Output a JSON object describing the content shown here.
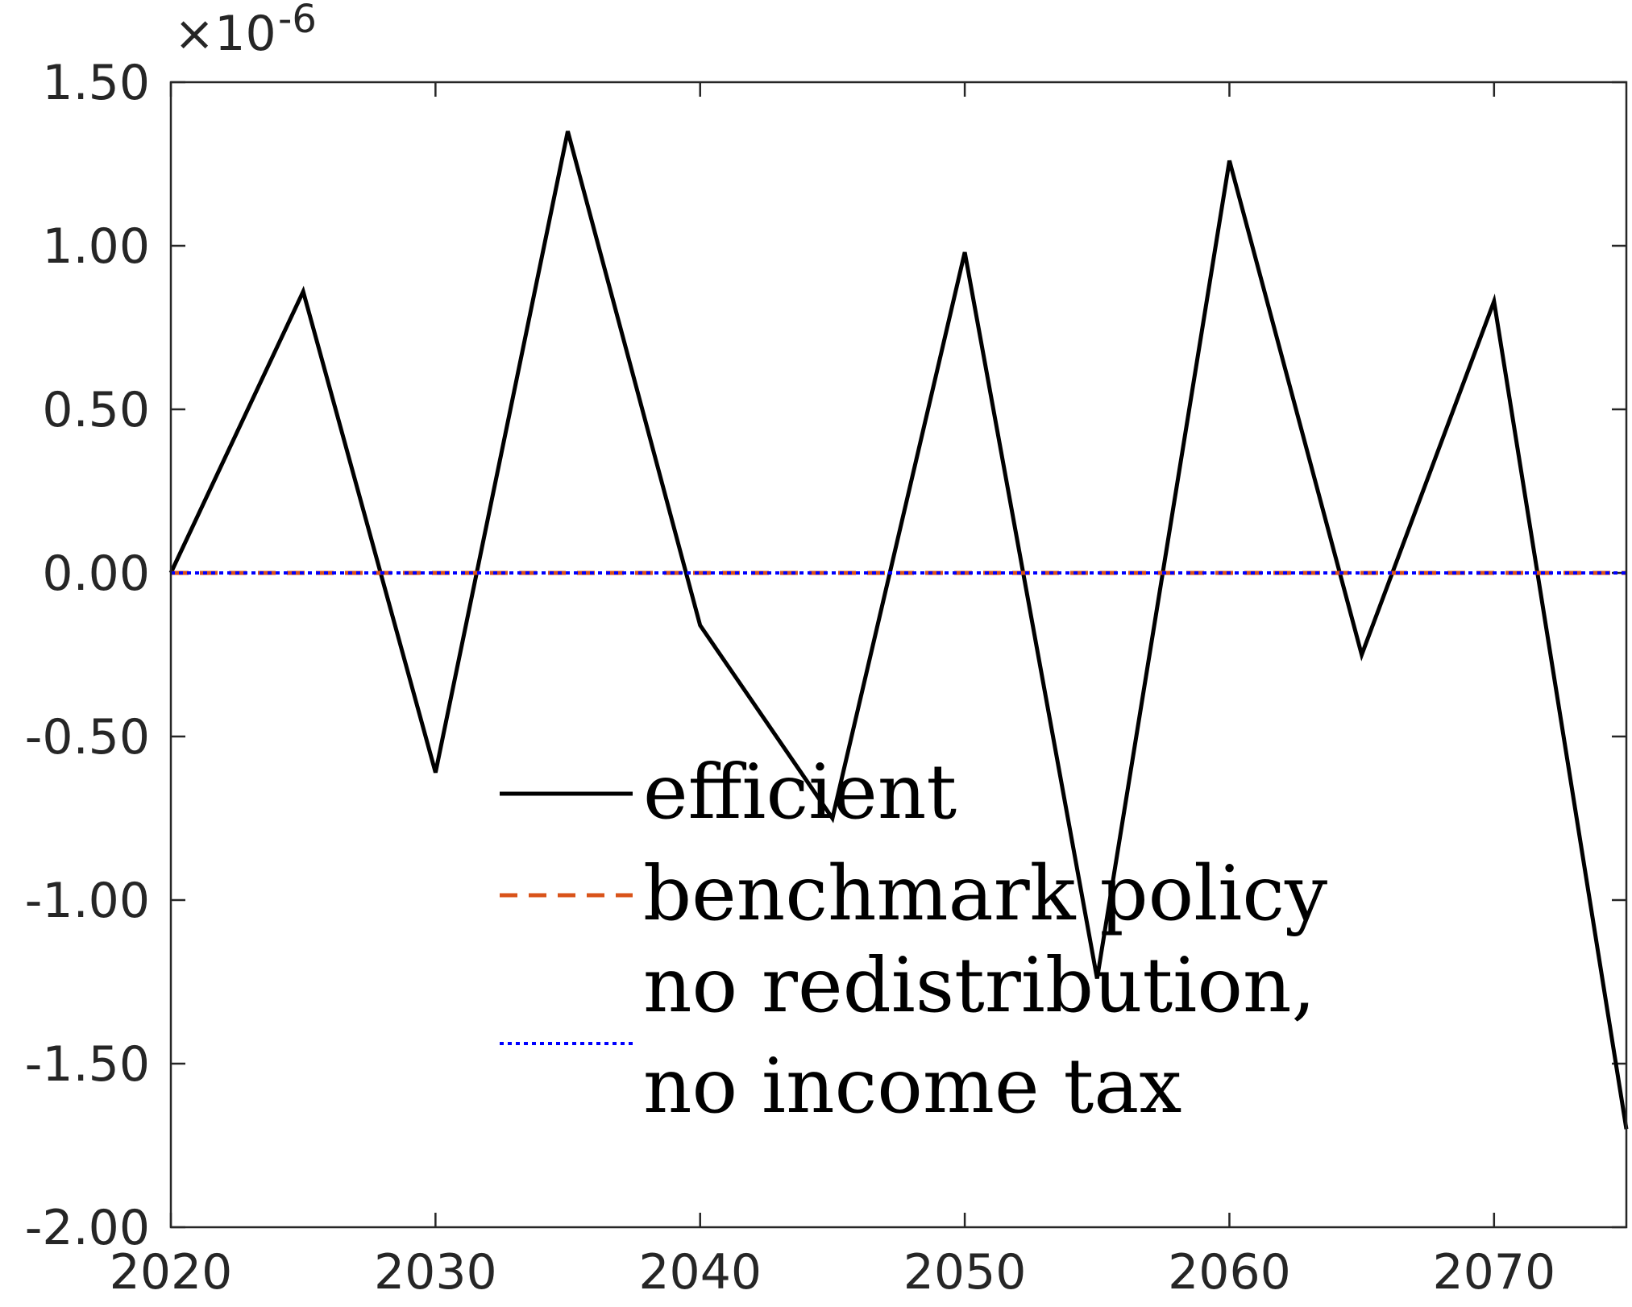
{
  "chart_data": {
    "type": "line",
    "title": "",
    "xlabel": "",
    "ylabel": "",
    "y_exponent_label": "×10",
    "y_exponent_power": "-6",
    "xlim": [
      2020,
      2075
    ],
    "ylim": [
      -2.0,
      1.5
    ],
    "xticks": [
      2020,
      2030,
      2040,
      2050,
      2060,
      2070
    ],
    "xtick_labels": [
      "2020",
      "2030",
      "2040",
      "2050",
      "2060",
      "2070"
    ],
    "yticks": [
      1.5,
      1.0,
      0.5,
      0.0,
      -0.5,
      -1.0,
      -1.5,
      -2.0
    ],
    "ytick_labels": [
      "1.50",
      "1.00",
      "0.50",
      "0.00",
      "-0.50",
      "-1.00",
      "-1.50",
      "-2.00"
    ],
    "grid": false,
    "legend_position": "bottom-center",
    "x": [
      2020,
      2025,
      2030,
      2035,
      2040,
      2045,
      2050,
      2055,
      2060,
      2065,
      2070,
      2075
    ],
    "series": [
      {
        "name": "efficient",
        "color": "#000000",
        "dash": "solid",
        "values": [
          0.0,
          0.86,
          -0.61,
          1.35,
          -0.16,
          -0.75,
          0.98,
          -1.24,
          1.26,
          -0.25,
          0.83,
          -1.7
        ]
      },
      {
        "name": "benchmark policy",
        "color": "#D95319",
        "dash": "dashed",
        "values": [
          0,
          0,
          0,
          0,
          0,
          0,
          0,
          0,
          0,
          0,
          0,
          0
        ]
      },
      {
        "name": "no redistribution,\nno income tax",
        "name_lines": [
          "no redistribution,",
          "no income tax"
        ],
        "color": "#0000FF",
        "dash": "dotted",
        "values": [
          0,
          0,
          0,
          0,
          0,
          0,
          0,
          0,
          0,
          0,
          0,
          0
        ]
      }
    ]
  }
}
